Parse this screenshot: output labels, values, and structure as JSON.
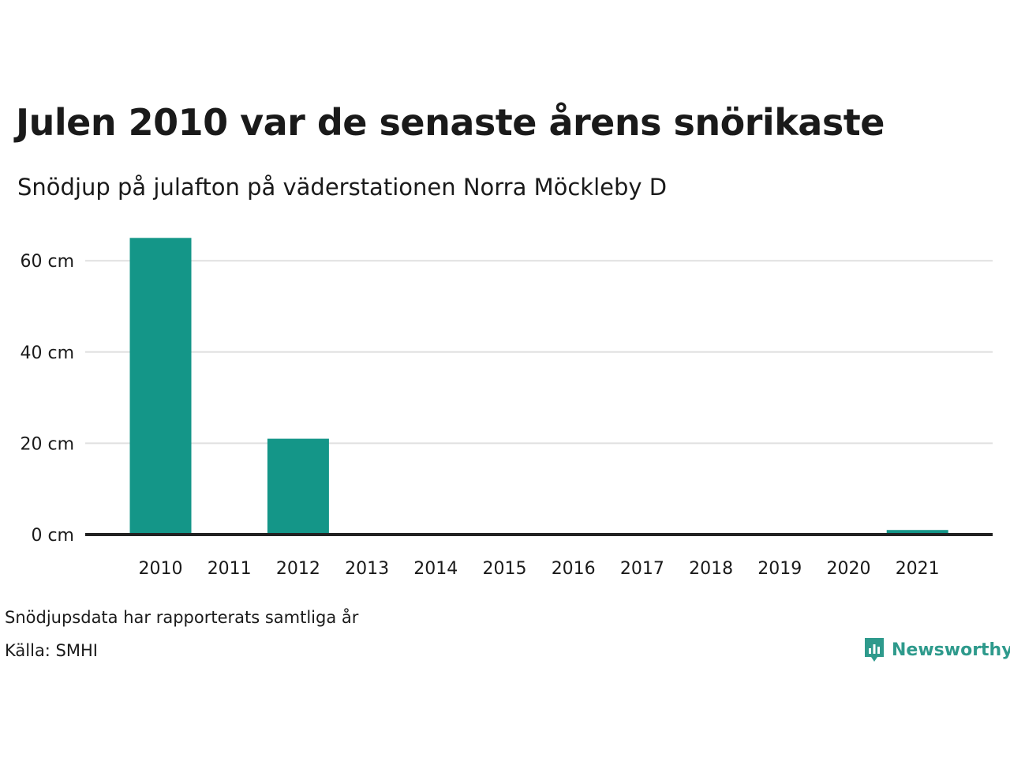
{
  "header": {
    "title": "Julen 2010 var de senaste årens snörikaste",
    "subtitle": "Snödjup på julafton på väderstationen Norra Möckleby D"
  },
  "footer": {
    "note": "Snödjupsdata har rapporterats samtliga år",
    "source": "Källa: SMHI",
    "brand": "Newsworthy"
  },
  "colors": {
    "bar": "#149688",
    "grid": "#e0e0e0",
    "axis": "#222222",
    "brand": "#2e9a8c"
  },
  "chart_data": {
    "type": "bar",
    "categories": [
      "2010",
      "2011",
      "2012",
      "2013",
      "2014",
      "2015",
      "2016",
      "2017",
      "2018",
      "2019",
      "2020",
      "2021"
    ],
    "values": [
      65,
      0,
      21,
      0,
      0,
      0,
      0,
      0,
      0,
      0,
      0,
      1
    ],
    "title": "Julen 2010 var de senaste årens snörikaste",
    "subtitle": "Snödjup på julafton på väderstationen Norra Möckleby D",
    "xlabel": "",
    "ylabel": "",
    "yticks": [
      0,
      20,
      40,
      60
    ],
    "ytick_labels": [
      "0 cm",
      "20 cm",
      "40 cm",
      "60 cm"
    ],
    "ylim": [
      0,
      65
    ],
    "grid": "horizontal"
  }
}
